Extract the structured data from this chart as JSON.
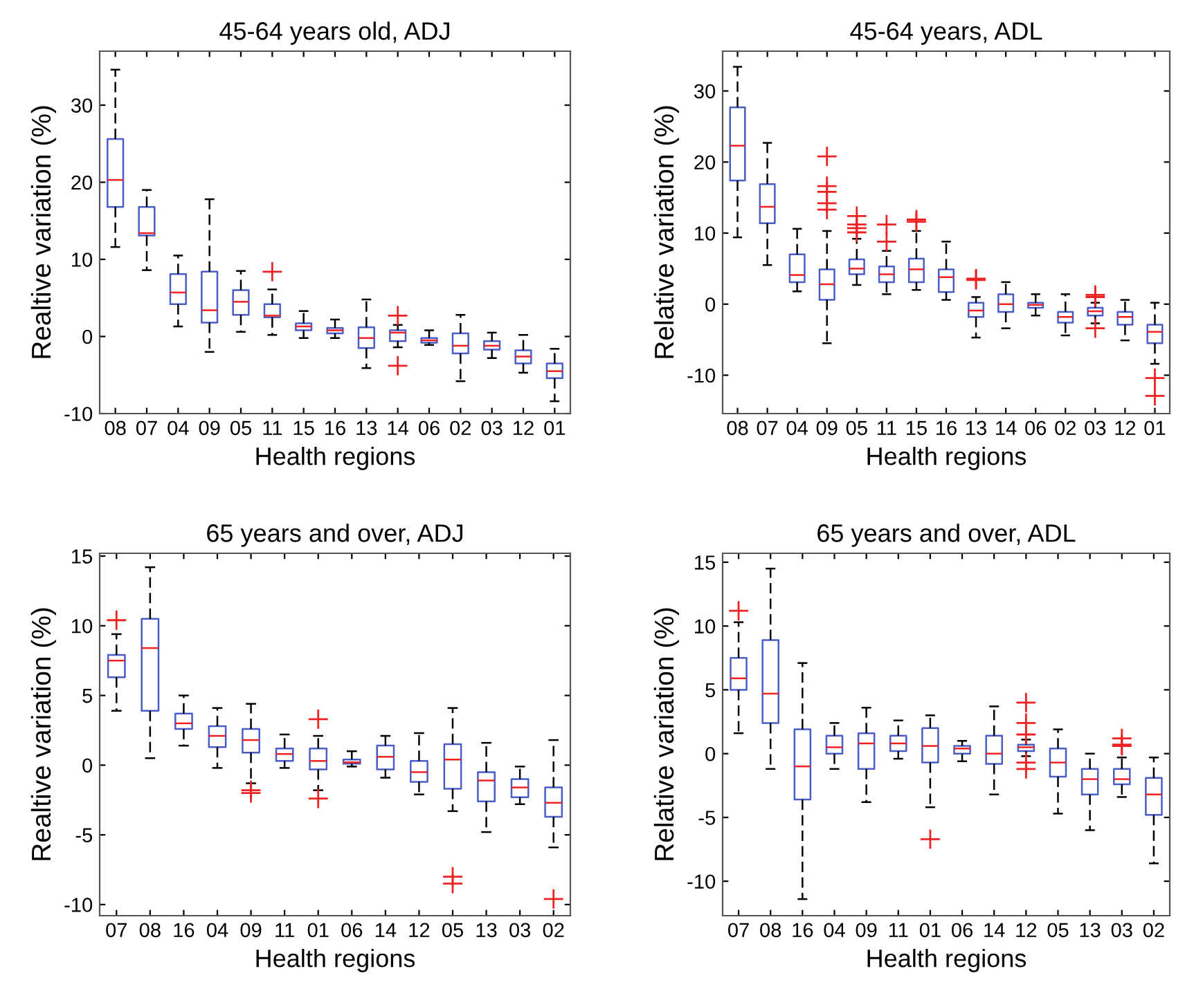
{
  "chart_data": [
    {
      "type": "box",
      "title": "45-64 years old, ADJ",
      "xlabel": "Health regions",
      "ylabel": "Realtive variation (%)",
      "categories": [
        "08",
        "07",
        "04",
        "09",
        "05",
        "11",
        "15",
        "16",
        "13",
        "14",
        "06",
        "02",
        "03",
        "12",
        "01"
      ],
      "ylim": [
        -10,
        37
      ],
      "yticks": [
        -10,
        0,
        10,
        20,
        30
      ],
      "grid": false,
      "series": [
        {
          "color": "#4a5cc8",
          "boxes": [
            {
              "low": 11.6,
              "q1": 16.8,
              "median": 20.3,
              "q3": 25.6,
              "high": 34.6
            },
            {
              "low": 8.6,
              "q1": 13.1,
              "median": 13.4,
              "q3": 16.8,
              "high": 19.0
            },
            {
              "low": 1.3,
              "q1": 4.2,
              "median": 5.7,
              "q3": 8.1,
              "high": 10.5
            },
            {
              "low": -2.0,
              "q1": 1.8,
              "median": 3.4,
              "q3": 8.4,
              "high": 17.8
            },
            {
              "low": 0.6,
              "q1": 2.8,
              "median": 4.5,
              "q3": 6.0,
              "high": 8.5
            },
            {
              "low": 0.2,
              "q1": 2.5,
              "median": 2.7,
              "q3": 4.2,
              "high": 6.1,
              "outliers": [
                8.4
              ]
            },
            {
              "low": -0.2,
              "q1": 0.8,
              "median": 1.3,
              "q3": 1.7,
              "high": 3.3
            },
            {
              "low": -0.2,
              "q1": 0.4,
              "median": 0.8,
              "q3": 1.1,
              "high": 2.2
            },
            {
              "low": -4.1,
              "q1": -1.5,
              "median": -0.2,
              "q3": 1.2,
              "high": 4.8
            },
            {
              "low": -1.4,
              "q1": -0.6,
              "median": 0.5,
              "q3": 0.8,
              "high": 1.5,
              "outliers": [
                2.7,
                -3.8
              ]
            },
            {
              "low": -1.1,
              "q1": -0.8,
              "median": -0.5,
              "q3": -0.2,
              "high": 0.8
            },
            {
              "low": -5.8,
              "q1": -2.2,
              "median": -1.2,
              "q3": 0.4,
              "high": 2.8
            },
            {
              "low": -2.8,
              "q1": -1.7,
              "median": -1.2,
              "q3": -0.6,
              "high": 0.5
            },
            {
              "low": -4.7,
              "q1": -3.5,
              "median": -2.6,
              "q3": -1.8,
              "high": 0.2
            },
            {
              "low": -8.4,
              "q1": -5.4,
              "median": -4.5,
              "q3": -3.5,
              "high": -1.6
            }
          ]
        }
      ]
    },
    {
      "type": "box",
      "title": "45-64 years, ADL",
      "xlabel": "Health regions",
      "ylabel": "Relative variation (%)",
      "categories": [
        "08",
        "07",
        "04",
        "09",
        "05",
        "11",
        "15",
        "16",
        "13",
        "14",
        "06",
        "02",
        "03",
        "12",
        "01"
      ],
      "ylim": [
        -15.4,
        35.6
      ],
      "yticks": [
        -10,
        0,
        10,
        20,
        30
      ],
      "grid": false,
      "series": [
        {
          "color": "#4a5cc8",
          "boxes": [
            {
              "low": 9.4,
              "q1": 17.4,
              "median": 22.3,
              "q3": 27.7,
              "high": 33.4
            },
            {
              "low": 5.5,
              "q1": 11.4,
              "median": 13.7,
              "q3": 16.9,
              "high": 22.7
            },
            {
              "low": 1.8,
              "q1": 3.1,
              "median": 4.1,
              "q3": 7.0,
              "high": 10.6
            },
            {
              "low": -5.5,
              "q1": 0.6,
              "median": 2.8,
              "q3": 4.9,
              "high": 10.3,
              "outliers": [
                20.8,
                16.6,
                15.8,
                14.2,
                13.3
              ]
            },
            {
              "low": 2.7,
              "q1": 4.2,
              "median": 5.0,
              "q3": 6.3,
              "high": 9.2,
              "outliers": [
                12.4,
                11.2,
                10.7,
                10.1
              ]
            },
            {
              "low": 1.4,
              "q1": 3.1,
              "median": 4.2,
              "q3": 5.3,
              "high": 7.5,
              "outliers": [
                11.2,
                8.8
              ]
            },
            {
              "low": 2.0,
              "q1": 3.1,
              "median": 4.9,
              "q3": 6.4,
              "high": 10.3,
              "outliers": [
                11.9,
                11.6
              ]
            },
            {
              "low": 0.6,
              "q1": 1.7,
              "median": 3.8,
              "q3": 4.9,
              "high": 8.8
            },
            {
              "low": -4.7,
              "q1": -1.8,
              "median": -0.9,
              "q3": 0.2,
              "high": 1.0,
              "outliers": [
                3.6,
                3.4
              ]
            },
            {
              "low": -3.4,
              "q1": -1.1,
              "median": 0.0,
              "q3": 1.4,
              "high": 3.1
            },
            {
              "low": -1.6,
              "q1": -0.5,
              "median": -0.1,
              "q3": 0.2,
              "high": 1.4
            },
            {
              "low": -4.4,
              "q1": -2.6,
              "median": -1.8,
              "q3": -1.1,
              "high": 1.4
            },
            {
              "low": -2.7,
              "q1": -1.6,
              "median": -1.0,
              "q3": -0.5,
              "high": 0.2,
              "outliers": [
                1.3,
                1.0,
                -3.4
              ]
            },
            {
              "low": -5.1,
              "q1": -2.9,
              "median": -1.8,
              "q3": -1.1,
              "high": 0.6
            },
            {
              "low": -8.4,
              "q1": -5.5,
              "median": -3.9,
              "q3": -2.9,
              "high": 0.2,
              "outliers": [
                -10.4,
                -12.9
              ]
            }
          ]
        }
      ]
    },
    {
      "type": "box",
      "title": "65 years and over, ADJ",
      "xlabel": "Health regions",
      "ylabel": "Realtive variation (%)",
      "categories": [
        "07",
        "08",
        "16",
        "04",
        "09",
        "11",
        "01",
        "06",
        "14",
        "12",
        "05",
        "13",
        "03",
        "02"
      ],
      "ylim": [
        -10.8,
        15.2
      ],
      "yticks": [
        -10,
        -5,
        0,
        5,
        10,
        15
      ],
      "grid": false,
      "series": [
        {
          "color": "#4a5cc8",
          "boxes": [
            {
              "low": 3.9,
              "q1": 6.3,
              "median": 7.5,
              "q3": 7.9,
              "high": 9.4,
              "outliers": [
                10.4
              ]
            },
            {
              "low": 0.5,
              "q1": 3.9,
              "median": 8.4,
              "q3": 10.5,
              "high": 14.2
            },
            {
              "low": 1.4,
              "q1": 2.6,
              "median": 3.0,
              "q3": 3.7,
              "high": 5.0
            },
            {
              "low": -0.2,
              "q1": 1.3,
              "median": 2.1,
              "q3": 2.8,
              "high": 4.1
            },
            {
              "low": -1.3,
              "q1": 0.9,
              "median": 1.8,
              "q3": 2.6,
              "high": 4.4,
              "outliers": [
                -1.8,
                -2.0
              ]
            },
            {
              "low": -0.2,
              "q1": 0.3,
              "median": 0.8,
              "q3": 1.2,
              "high": 2.2
            },
            {
              "low": -1.8,
              "q1": -0.3,
              "median": 0.3,
              "q3": 1.2,
              "high": 2.1,
              "outliers": [
                3.3,
                -2.4
              ]
            },
            {
              "low": -0.1,
              "q1": 0.1,
              "median": 0.2,
              "q3": 0.4,
              "high": 1.0
            },
            {
              "low": -0.9,
              "q1": -0.3,
              "median": 0.6,
              "q3": 1.4,
              "high": 2.1
            },
            {
              "low": -2.1,
              "q1": -1.2,
              "median": -0.5,
              "q3": 0.3,
              "high": 2.3
            },
            {
              "low": -3.3,
              "q1": -1.7,
              "median": 0.4,
              "q3": 1.5,
              "high": 4.1,
              "outliers": [
                -8.0,
                -8.5
              ]
            },
            {
              "low": -4.8,
              "q1": -2.6,
              "median": -1.1,
              "q3": -0.5,
              "high": 1.6
            },
            {
              "low": -2.8,
              "q1": -2.3,
              "median": -1.6,
              "q3": -1.0,
              "high": -0.1
            },
            {
              "low": -5.9,
              "q1": -3.7,
              "median": -2.7,
              "q3": -1.6,
              "high": 1.8,
              "outliers": [
                -9.6
              ]
            }
          ]
        }
      ]
    },
    {
      "type": "box",
      "title": "65 years and over, ADL",
      "xlabel": "Health regions",
      "ylabel": "Relative variation (%)",
      "categories": [
        "07",
        "08",
        "16",
        "04",
        "09",
        "11",
        "01",
        "06",
        "14",
        "12",
        "05",
        "13",
        "03",
        "02"
      ],
      "ylim": [
        -12.7,
        15.7
      ],
      "yticks": [
        -10,
        -5,
        0,
        5,
        10,
        15
      ],
      "grid": false,
      "series": [
        {
          "color": "#4a5cc8",
          "boxes": [
            {
              "low": 1.6,
              "q1": 5.0,
              "median": 5.9,
              "q3": 7.5,
              "high": 10.3,
              "outliers": [
                11.2
              ]
            },
            {
              "low": -1.2,
              "q1": 2.4,
              "median": 4.7,
              "q3": 8.9,
              "high": 14.5
            },
            {
              "low": -11.4,
              "q1": -3.6,
              "median": -1.0,
              "q3": 1.9,
              "high": 7.1
            },
            {
              "low": -1.2,
              "q1": 0.0,
              "median": 0.5,
              "q3": 1.4,
              "high": 2.4
            },
            {
              "low": -3.8,
              "q1": -1.2,
              "median": 0.8,
              "q3": 1.6,
              "high": 3.6
            },
            {
              "low": -0.4,
              "q1": 0.2,
              "median": 0.8,
              "q3": 1.4,
              "high": 2.6
            },
            {
              "low": -4.2,
              "q1": -0.7,
              "median": 0.6,
              "q3": 2.0,
              "high": 3.0,
              "outliers": [
                -6.7
              ]
            },
            {
              "low": -0.6,
              "q1": 0.0,
              "median": 0.4,
              "q3": 0.6,
              "high": 1.0
            },
            {
              "low": -3.2,
              "q1": -0.8,
              "median": 0.0,
              "q3": 1.4,
              "high": 3.7
            },
            {
              "low": -0.2,
              "q1": 0.2,
              "median": 0.5,
              "q3": 0.7,
              "high": 1.1,
              "outliers": [
                4.0,
                2.4,
                1.5,
                -0.7,
                -1.2
              ]
            },
            {
              "low": -4.7,
              "q1": -1.8,
              "median": -0.7,
              "q3": 0.4,
              "high": 1.9
            },
            {
              "low": -6.0,
              "q1": -3.2,
              "median": -2.0,
              "q3": -1.2,
              "high": 0.0
            },
            {
              "low": -3.4,
              "q1": -2.4,
              "median": -2.0,
              "q3": -1.2,
              "high": -0.3,
              "outliers": [
                1.2,
                0.7,
                0.6
              ]
            },
            {
              "low": -8.6,
              "q1": -4.8,
              "median": -3.2,
              "q3": -1.9,
              "high": -0.3
            }
          ]
        }
      ]
    }
  ]
}
